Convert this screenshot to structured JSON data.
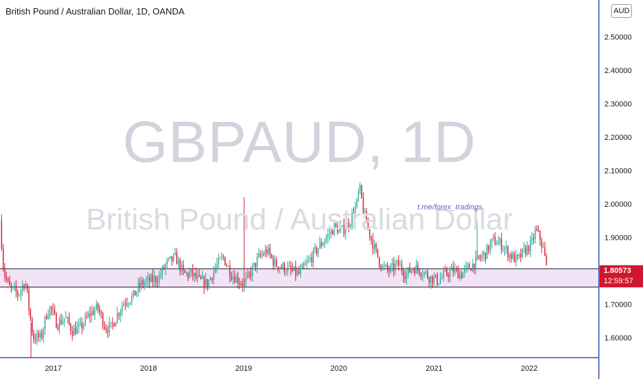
{
  "header": {
    "title": "British Pound / Australian Dollar, 1D, OANDA"
  },
  "watermark": {
    "symbol": "GBPAUD, 1D",
    "name": "British Pound / Australian Dollar"
  },
  "annotation": {
    "text": "t.me/forex_tradings"
  },
  "currency_badge": "AUD",
  "price_label": {
    "price": "1.80573",
    "countdown": "12:59:57"
  },
  "colors": {
    "up": "#26a69a",
    "down": "#d1172d",
    "zone_fill": "#f3e3f6",
    "axis": "#3f51b5"
  },
  "chart_data": {
    "type": "candlestick",
    "symbol": "GBPAUD",
    "timeframe": "1D",
    "source": "OANDA",
    "x_ticks": [
      "2017",
      "2018",
      "2019",
      "2020",
      "2021",
      "2022"
    ],
    "y_ticks": [
      "1.60000",
      "1.70000",
      "1.80000",
      "1.90000",
      "2.00000",
      "2.10000",
      "2.20000",
      "2.30000",
      "2.40000",
      "2.50000"
    ],
    "ylim": [
      1.54,
      2.61
    ],
    "xlim": [
      "2016-06-10",
      "2022-09-25"
    ],
    "zone": {
      "low": 1.751,
      "high": 1.806
    },
    "last_price": 1.80573,
    "series": [
      {
        "name": "",
        "points": [
          [
            "2016-06-10",
            1.95
          ],
          [
            "2016-06-24",
            1.8
          ],
          [
            "2016-07-15",
            1.75
          ],
          [
            "2016-08-20",
            1.73
          ],
          [
            "2016-09-15",
            1.77
          ],
          [
            "2016-10-15",
            1.6
          ],
          [
            "2016-11-15",
            1.6
          ],
          [
            "2016-12-05",
            1.67
          ],
          [
            "2016-12-20",
            1.69
          ],
          [
            "2017-01-15",
            1.64
          ],
          [
            "2017-02-15",
            1.66
          ],
          [
            "2017-03-15",
            1.62
          ],
          [
            "2017-04-15",
            1.63
          ],
          [
            "2017-05-20",
            1.67
          ],
          [
            "2017-06-20",
            1.69
          ],
          [
            "2017-07-20",
            1.63
          ],
          [
            "2017-08-10",
            1.63
          ],
          [
            "2017-09-10",
            1.68
          ],
          [
            "2017-10-01",
            1.71
          ],
          [
            "2017-11-01",
            1.72
          ],
          [
            "2017-12-01",
            1.76
          ],
          [
            "2018-01-10",
            1.77
          ],
          [
            "2018-02-10",
            1.78
          ],
          [
            "2018-03-10",
            1.82
          ],
          [
            "2018-04-15",
            1.84
          ],
          [
            "2018-05-15",
            1.79
          ],
          [
            "2018-06-15",
            1.79
          ],
          [
            "2018-07-15",
            1.77
          ],
          [
            "2018-08-15",
            1.76
          ],
          [
            "2018-09-15",
            1.81
          ],
          [
            "2018-10-15",
            1.84
          ],
          [
            "2018-11-15",
            1.79
          ],
          [
            "2018-12-15",
            1.77
          ],
          [
            "2019-01-03",
            1.76
          ],
          [
            "2019-02-01",
            1.8
          ],
          [
            "2019-03-01",
            1.84
          ],
          [
            "2019-04-01",
            1.86
          ],
          [
            "2019-05-01",
            1.82
          ],
          [
            "2019-06-01",
            1.81
          ],
          [
            "2019-07-01",
            1.8
          ],
          [
            "2019-08-01",
            1.79
          ],
          [
            "2019-09-01",
            1.82
          ],
          [
            "2019-10-15",
            1.87
          ],
          [
            "2019-11-15",
            1.9
          ],
          [
            "2019-12-15",
            1.93
          ],
          [
            "2020-01-15",
            1.92
          ],
          [
            "2020-02-15",
            1.95
          ],
          [
            "2020-03-10",
            2.0
          ],
          [
            "2020-03-20",
            2.05
          ],
          [
            "2020-04-10",
            1.96
          ],
          [
            "2020-05-15",
            1.87
          ],
          [
            "2020-06-15",
            1.81
          ],
          [
            "2020-07-15",
            1.8
          ],
          [
            "2020-08-15",
            1.82
          ],
          [
            "2020-09-15",
            1.79
          ],
          [
            "2020-10-15",
            1.81
          ],
          [
            "2020-11-15",
            1.8
          ],
          [
            "2020-12-15",
            1.78
          ],
          [
            "2021-01-15",
            1.77
          ],
          [
            "2021-02-15",
            1.79
          ],
          [
            "2021-03-15",
            1.8
          ],
          [
            "2021-04-15",
            1.79
          ],
          [
            "2021-05-15",
            1.81
          ],
          [
            "2021-06-15",
            1.83
          ],
          [
            "2021-07-15",
            1.85
          ],
          [
            "2021-08-15",
            1.89
          ],
          [
            "2021-09-15",
            1.88
          ],
          [
            "2021-10-15",
            1.85
          ],
          [
            "2021-11-15",
            1.83
          ],
          [
            "2021-12-15",
            1.86
          ],
          [
            "2022-01-10",
            1.88
          ],
          [
            "2022-01-25",
            1.92
          ],
          [
            "2022-02-10",
            1.9
          ],
          [
            "2022-02-25",
            1.86
          ],
          [
            "2022-03-08",
            1.81
          ]
        ],
        "spikes": [
          {
            "date": "2016-10-07",
            "low": 1.54
          },
          {
            "date": "2019-01-03",
            "high": 2.02
          },
          {
            "date": "2021-06-15",
            "high": 1.95
          }
        ]
      }
    ]
  }
}
